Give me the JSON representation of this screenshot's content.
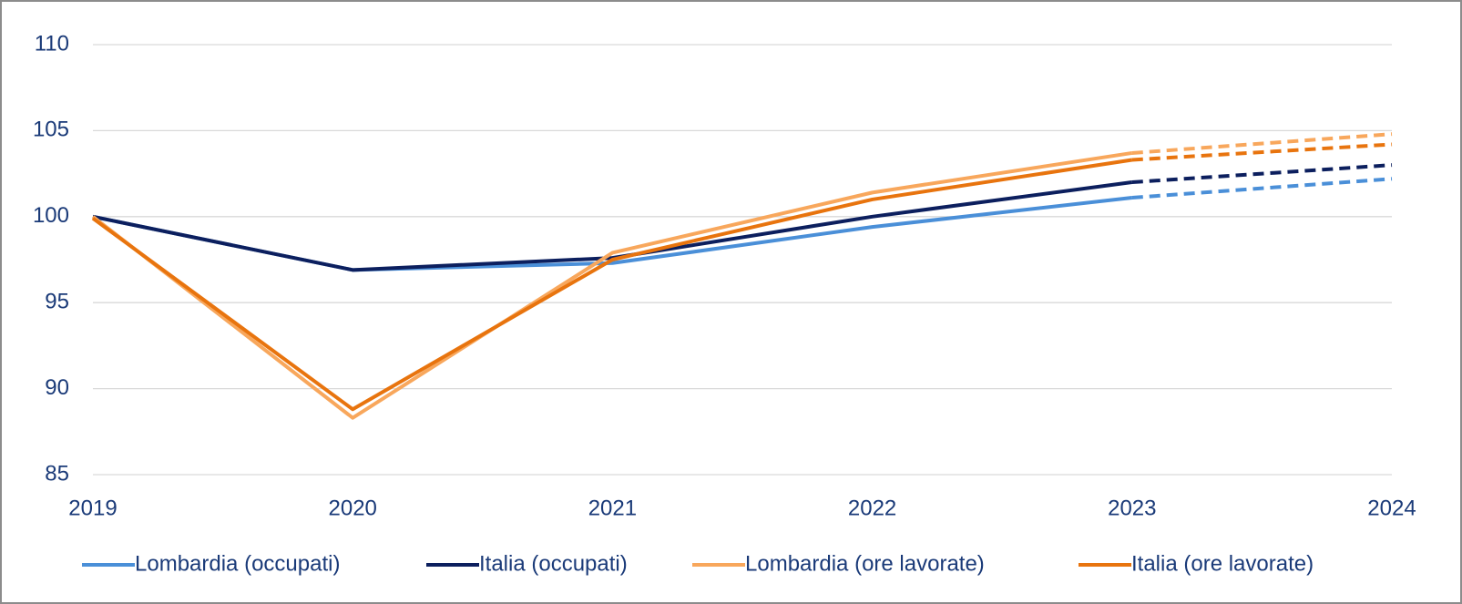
{
  "chart_data": {
    "type": "line",
    "x": [
      2019,
      2020,
      2021,
      2022,
      2023,
      2024
    ],
    "xlim": [
      2019,
      2024
    ],
    "xticks": [
      2019,
      2020,
      2021,
      2022,
      2023,
      2024
    ],
    "ylim": [
      85,
      110
    ],
    "yticks": [
      85,
      90,
      95,
      100,
      105,
      110
    ],
    "grid": true,
    "legend": "bottom",
    "dashed_from": 2023,
    "series": [
      {
        "name": "Lombardia (occupati)",
        "color": "#4a8fd8",
        "values": [
          100,
          96.9,
          97.3,
          99.4,
          101.1,
          102.2
        ]
      },
      {
        "name": "Italia (occupati)",
        "color": "#0c1f5e",
        "values": [
          100,
          96.9,
          97.6,
          100.0,
          102.0,
          103.0
        ]
      },
      {
        "name": "Lombardia (ore lavorate)",
        "color": "#f8a75c",
        "values": [
          100,
          88.3,
          97.9,
          101.4,
          103.7,
          104.8
        ]
      },
      {
        "name": "Italia (ore lavorate)",
        "color": "#e8740e",
        "values": [
          99.9,
          88.8,
          97.5,
          101.0,
          103.3,
          104.2
        ]
      }
    ]
  }
}
